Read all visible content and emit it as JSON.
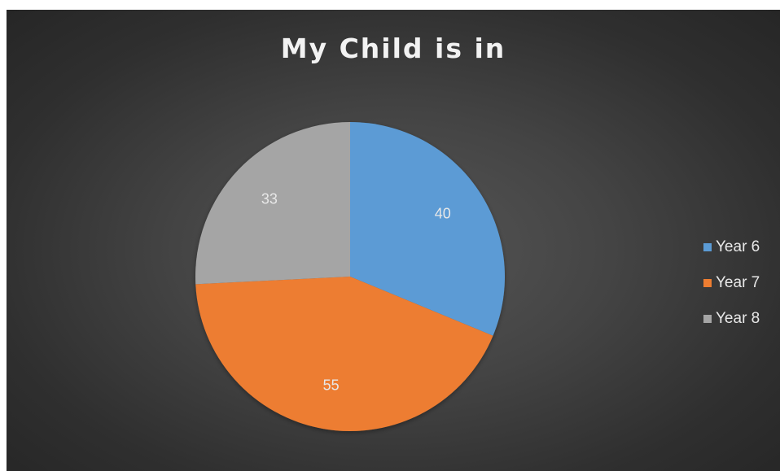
{
  "chart_data": {
    "type": "pie",
    "title": "My Child is in",
    "categories": [
      "Year 6",
      "Year 7",
      "Year 8"
    ],
    "values": [
      40,
      55,
      33
    ],
    "colors": [
      "#5b9bd5",
      "#ed7d31",
      "#a5a5a5"
    ],
    "data_labels": [
      "40",
      "55",
      "33"
    ],
    "legend_position": "right",
    "start_angle_deg": 0,
    "direction": "clockwise"
  }
}
